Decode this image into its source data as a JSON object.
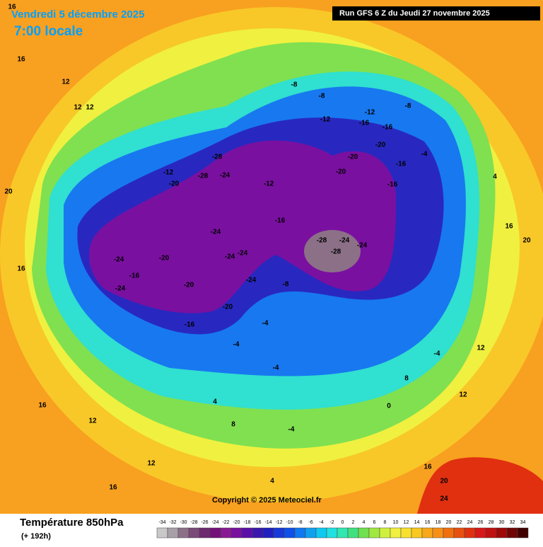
{
  "header": {
    "date": "Vendredi 5 décembre 2025",
    "time": "7:00 locale",
    "run": "Run GFS 6 Z du Jeudi 27 novembre 2025"
  },
  "copyright": "Copyright © 2025 Meteociel.fr",
  "footer": {
    "title": "Température 850hPa",
    "subtitle": "(+ 192h)"
  },
  "scale": {
    "labels": [
      -34,
      -32,
      -30,
      -28,
      -26,
      -24,
      -22,
      -20,
      -18,
      -16,
      -14,
      -12,
      -10,
      -8,
      -6,
      -4,
      -2,
      0,
      2,
      4,
      6,
      8,
      10,
      12,
      14,
      16,
      18,
      20,
      22,
      24,
      26,
      28,
      30,
      32,
      34
    ],
    "colors": [
      "#c8c8c8",
      "#a8a0a8",
      "#8c7088",
      "#7a4a78",
      "#6e2a6e",
      "#74107a",
      "#8a1a94",
      "#7a10a0",
      "#5a10a8",
      "#3a18b0",
      "#2020c0",
      "#1838d8",
      "#1050e8",
      "#1078f0",
      "#10a0f0",
      "#10c8f0",
      "#20e0e0",
      "#30e8b0",
      "#40e080",
      "#70e050",
      "#a0e840",
      "#d0f040",
      "#f0f040",
      "#f8e030",
      "#f8c820",
      "#f8a818",
      "#f89018",
      "#f07010",
      "#e85010",
      "#e03010",
      "#d81818",
      "#c01010",
      "#a00808",
      "#700404",
      "#400000"
    ]
  },
  "isotherm_labels": [
    -24,
    -24,
    -20,
    -24,
    -24,
    -24,
    -24,
    -24,
    -24,
    -28,
    -28,
    -28,
    -28,
    -24,
    -20,
    -16,
    -16,
    -20,
    -20,
    -16,
    -8,
    -12,
    -12,
    -12,
    -12,
    -16,
    -16,
    -16,
    -16,
    -20,
    -20,
    -20,
    -8,
    -8,
    -8,
    -4,
    -4,
    -4,
    -4,
    -4,
    4,
    8,
    -4,
    0,
    16,
    20,
    24,
    16,
    12,
    12,
    16,
    16,
    12,
    12,
    12,
    16,
    16,
    20,
    20,
    4,
    16,
    12,
    12,
    8,
    4
  ]
}
